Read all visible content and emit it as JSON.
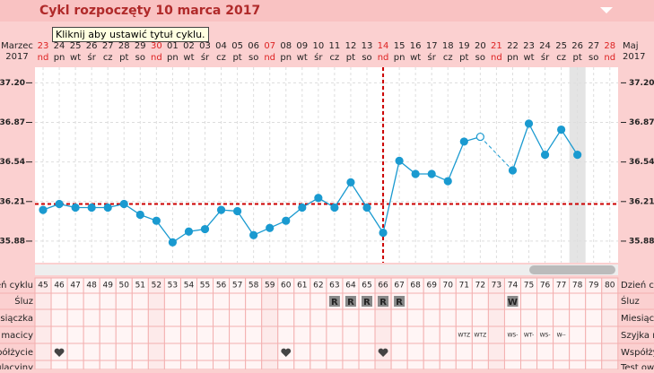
{
  "header": {
    "title": "Cykl rozpoczęty 10 marca 2017",
    "tooltip": "Kliknij aby ustawić tytuł cyklu."
  },
  "month_left": {
    "month": "Marzec",
    "year": "2017"
  },
  "month_right": {
    "month": "Maj",
    "year": "2017"
  },
  "days": [
    "23",
    "24",
    "25",
    "26",
    "27",
    "28",
    "29",
    "30",
    "01",
    "02",
    "03",
    "04",
    "05",
    "06",
    "07",
    "08",
    "09",
    "10",
    "11",
    "12",
    "13",
    "14",
    "15",
    "16",
    "17",
    "18",
    "19",
    "20",
    "21",
    "22",
    "23",
    "24",
    "25",
    "26",
    "27",
    "28"
  ],
  "weekdays": [
    "nd",
    "pn",
    "wt",
    "śr",
    "cz",
    "pt",
    "so",
    "nd",
    "pn",
    "wt",
    "śr",
    "cz",
    "pt",
    "so",
    "nd",
    "pn",
    "wt",
    "śr",
    "cz",
    "pt",
    "so",
    "nd",
    "pn",
    "wt",
    "śr",
    "cz",
    "pt",
    "so",
    "nd",
    "pn",
    "wt",
    "śr",
    "cz",
    "pt",
    "so",
    "nd"
  ],
  "chart_data": {
    "type": "line",
    "color": "#1a9ad0",
    "categories": [
      45,
      46,
      47,
      48,
      49,
      50,
      51,
      52,
      53,
      54,
      55,
      56,
      57,
      58,
      59,
      60,
      61,
      62,
      63,
      64,
      65,
      66,
      67,
      68,
      69,
      70,
      71,
      72,
      73,
      74,
      75,
      76,
      77,
      78,
      79,
      80
    ],
    "values": [
      36.14,
      36.19,
      36.16,
      36.16,
      36.16,
      36.19,
      36.1,
      36.05,
      35.87,
      35.96,
      35.98,
      36.14,
      36.13,
      35.93,
      35.99,
      36.05,
      36.16,
      36.24,
      36.16,
      36.37,
      36.16,
      35.95,
      36.55,
      36.44,
      36.44,
      36.38,
      36.71,
      36.75,
      null,
      36.47,
      36.86,
      36.6,
      36.81,
      36.6,
      null,
      null
    ],
    "ylim": [
      35.7,
      37.33
    ],
    "yticks": [
      {
        "value": 35.88,
        "label": "35.88"
      },
      {
        "value": 36.21,
        "label": "36.21"
      },
      {
        "value": 36.54,
        "label": "36.54"
      },
      {
        "value": 36.87,
        "label": "36.87"
      },
      {
        "value": 37.2,
        "label": "37.20"
      }
    ],
    "cover_line": 36.19,
    "ovulation_day": 66,
    "excluded_days": [
      72
    ],
    "highlight_day": 78,
    "grid": true
  },
  "rows": {
    "cycle_day": "Dzień cyklu",
    "mucus": "Śluz",
    "menstruation": "Miesiączka",
    "cervix": "Szyjka macicy",
    "intercourse": "Współżycie",
    "ovulation_test": "Test owulacyjny"
  },
  "mucus": [
    null,
    null,
    null,
    null,
    null,
    null,
    null,
    null,
    null,
    null,
    null,
    null,
    null,
    null,
    null,
    null,
    null,
    null,
    "R",
    "R",
    "R",
    "R",
    "R",
    null,
    null,
    null,
    null,
    null,
    null,
    "W",
    null,
    null,
    null,
    null,
    null,
    null
  ],
  "cervix": [
    null,
    null,
    null,
    null,
    null,
    null,
    null,
    null,
    null,
    null,
    null,
    null,
    null,
    null,
    null,
    null,
    null,
    null,
    null,
    null,
    null,
    null,
    null,
    null,
    null,
    null,
    "WTZ",
    "WTZ",
    null,
    "WS-",
    "WT-",
    "WS-",
    "W--",
    null,
    null,
    null
  ],
  "intercourse": [
    false,
    true,
    false,
    false,
    false,
    false,
    false,
    false,
    false,
    false,
    false,
    false,
    false,
    false,
    false,
    true,
    false,
    false,
    false,
    false,
    false,
    true,
    false,
    false,
    false,
    false,
    false,
    false,
    false,
    false,
    false,
    false,
    false,
    false,
    false,
    false
  ]
}
